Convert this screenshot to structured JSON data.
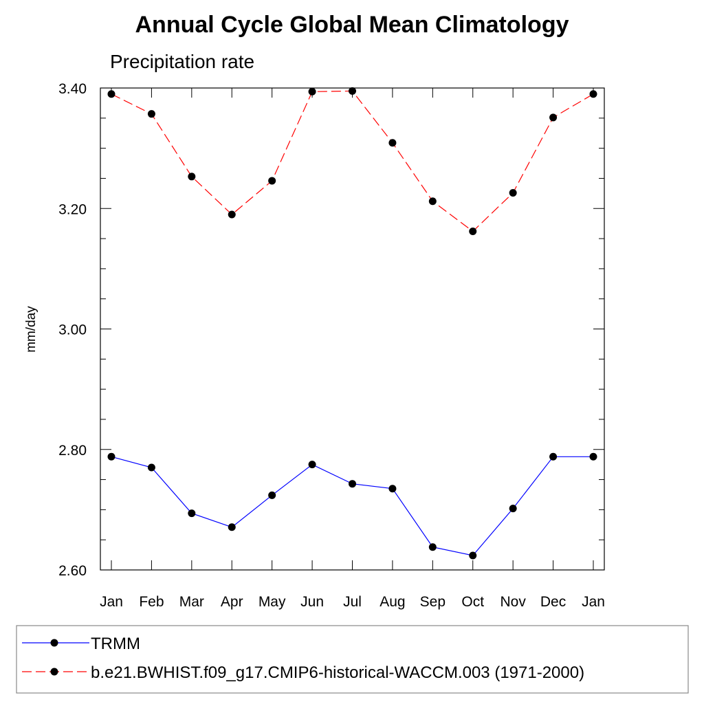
{
  "chart_data": {
    "type": "line",
    "title": "Annual Cycle Global Mean Climatology",
    "subtitle": "Precipitation rate",
    "ylabel": "mm/day",
    "xlabel": "",
    "ylim": [
      2.6,
      3.4
    ],
    "yticks": [
      "2.60",
      "2.80",
      "3.00",
      "3.20",
      "3.40"
    ],
    "ytick_values": [
      2.6,
      2.8,
      3.0,
      3.2,
      3.4
    ],
    "categories": [
      "Jan",
      "Feb",
      "Mar",
      "Apr",
      "May",
      "Jun",
      "Jul",
      "Aug",
      "Sep",
      "Oct",
      "Nov",
      "Dec",
      "Jan"
    ],
    "series": [
      {
        "name": "TRMM",
        "color": "#0000ff",
        "line_style": "solid",
        "values": [
          2.788,
          2.77,
          2.694,
          2.671,
          2.724,
          2.775,
          2.743,
          2.735,
          2.638,
          2.624,
          2.702,
          2.788,
          2.788
        ]
      },
      {
        "name": "b.e21.BWHIST.f09_g17.CMIP6-historical-WACCM.003 (1971-2000)",
        "color": "#ff0000",
        "line_style": "dashed",
        "values": [
          3.39,
          3.357,
          3.253,
          3.19,
          3.246,
          3.394,
          3.395,
          3.309,
          3.212,
          3.162,
          3.226,
          3.351,
          3.39
        ]
      }
    ],
    "grid": false,
    "legend_position": "bottom"
  }
}
